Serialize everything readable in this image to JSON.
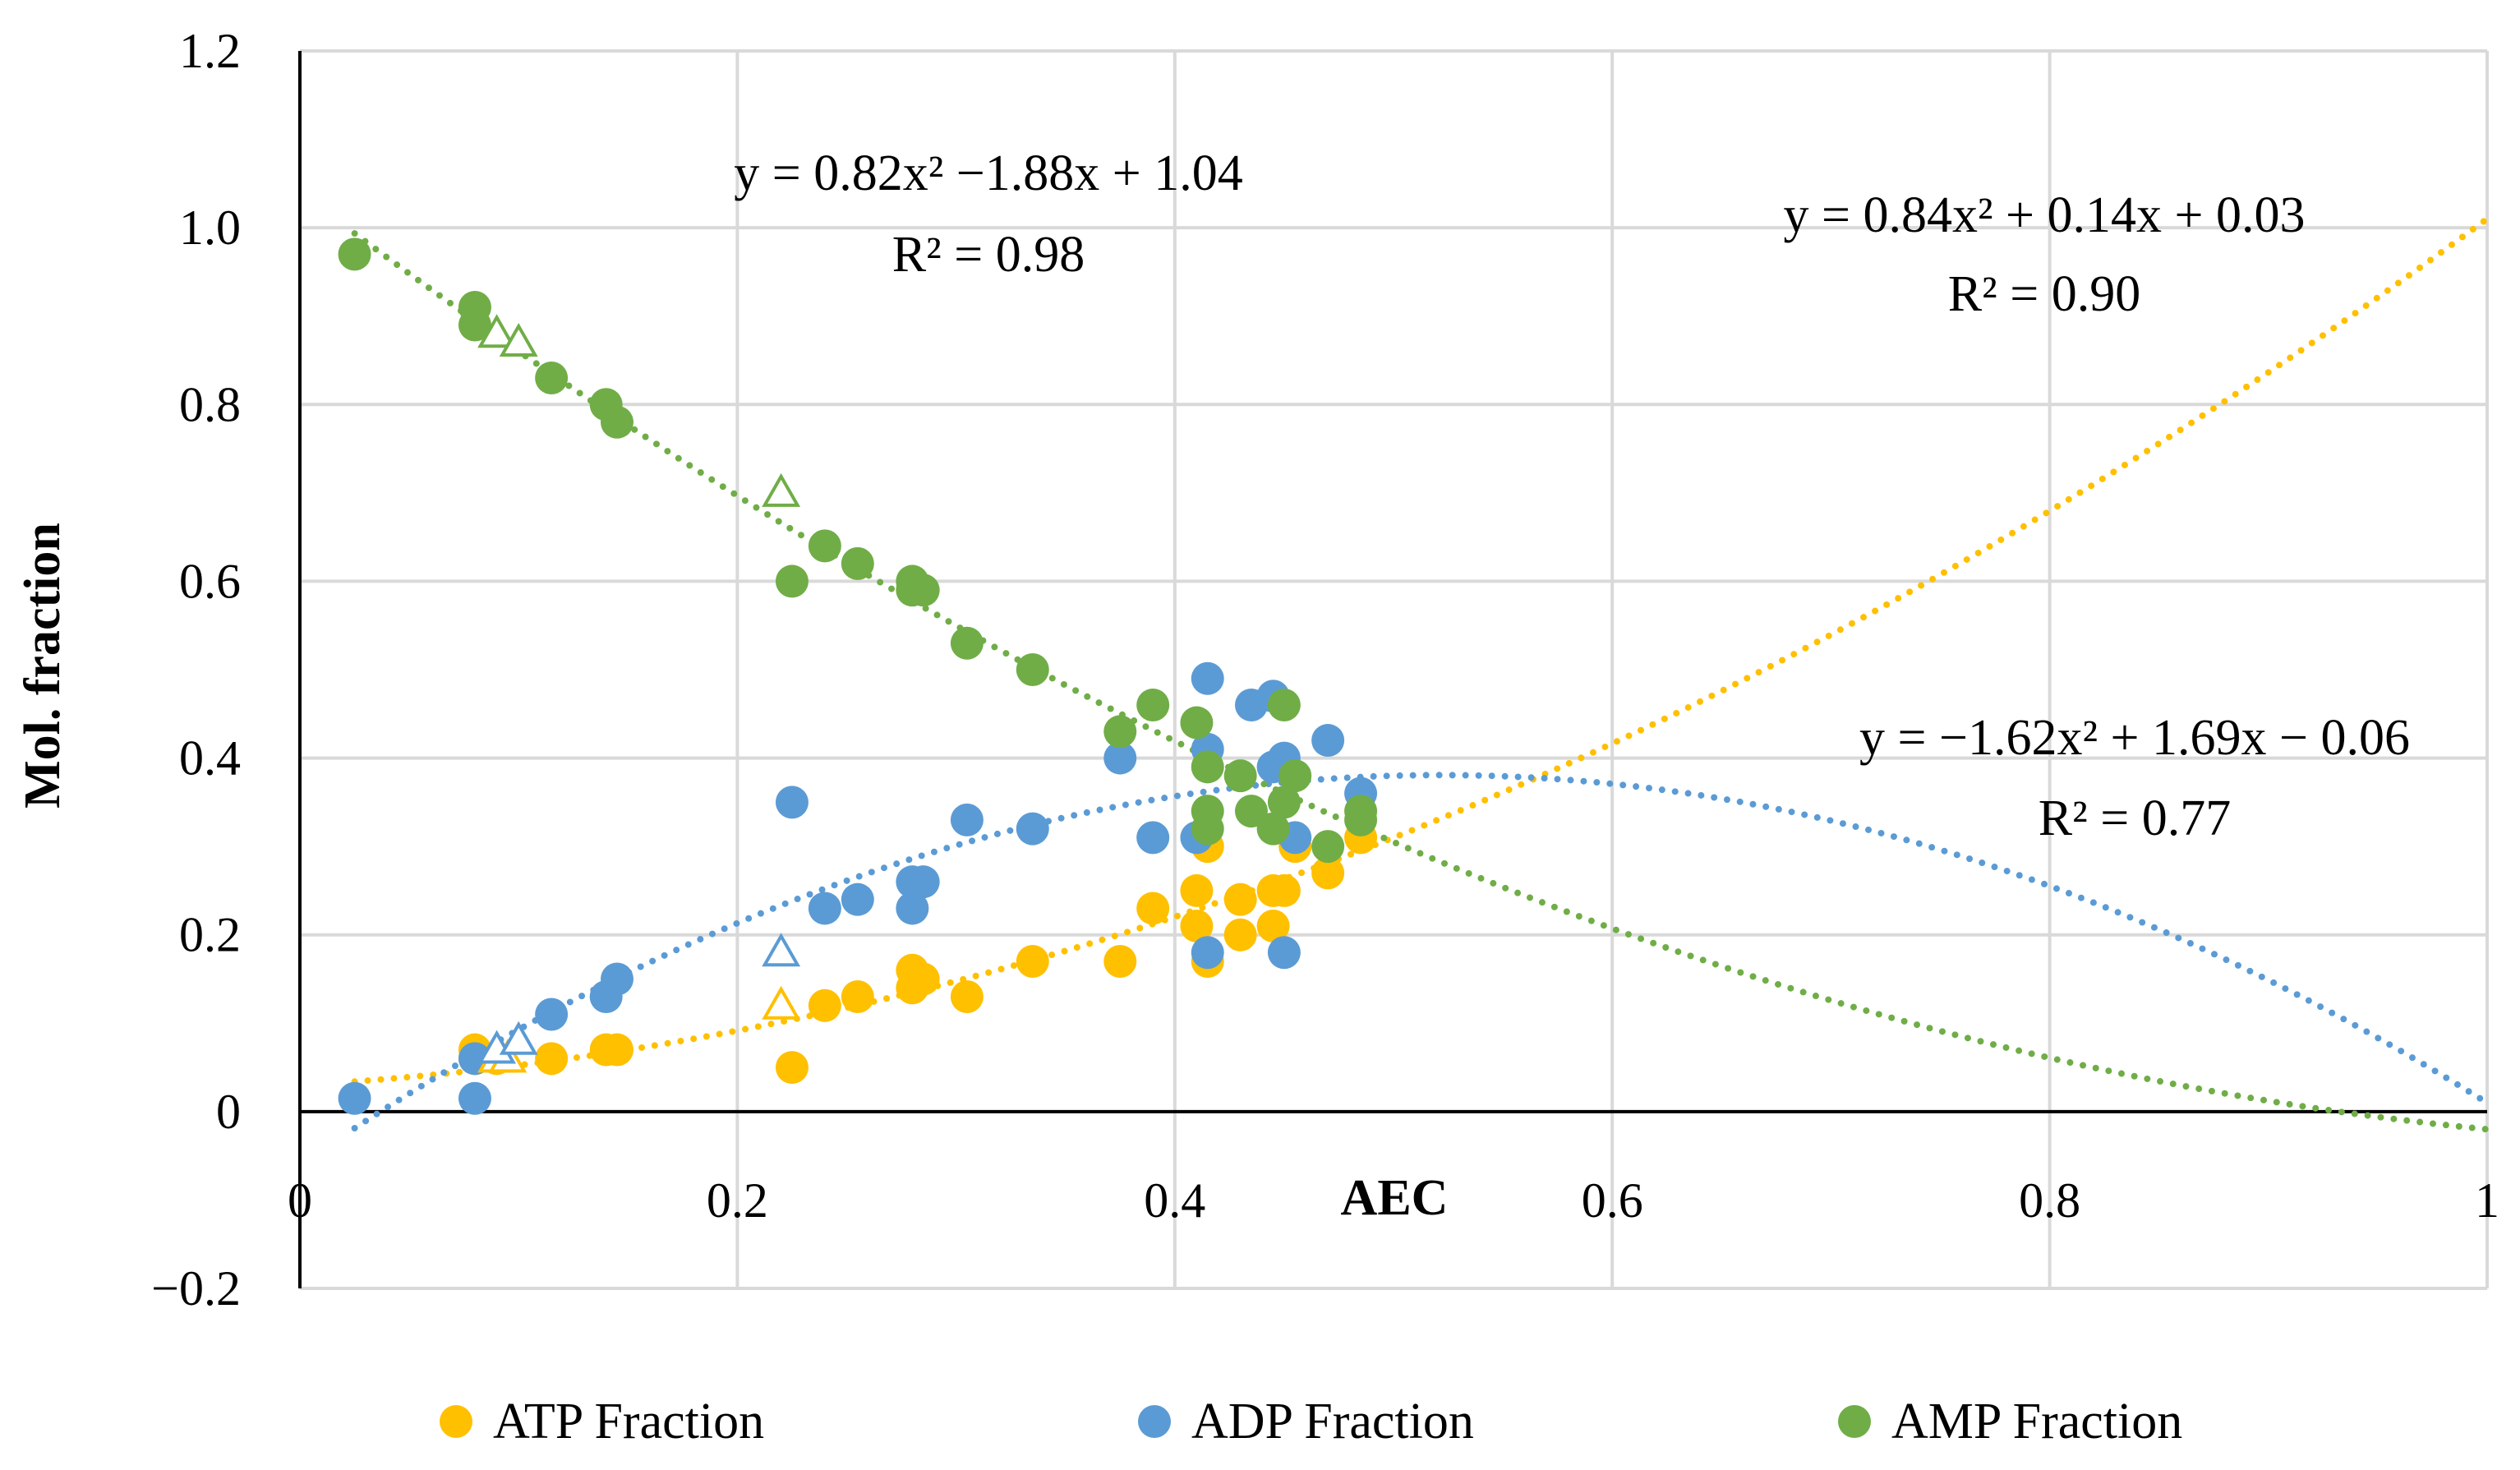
{
  "chart_data": {
    "type": "scatter",
    "title": "",
    "xlabel": "AEC",
    "ylabel": "Mol. fraction",
    "xlim": [
      0,
      1
    ],
    "ylim": [
      -0.2,
      1.2
    ],
    "xticks": [
      0,
      0.2,
      0.4,
      0.6,
      0.8,
      1
    ],
    "xtick_labels": [
      "0",
      "0.2",
      "0.4",
      "0.6",
      "0.8",
      "1"
    ],
    "yticks": [
      -0.2,
      0,
      0.2,
      0.4,
      0.6,
      0.8,
      1.0,
      1.2
    ],
    "ytick_labels": [
      "−0.2",
      "0",
      "0.2",
      "0.4",
      "0.6",
      "0.8",
      "1.0",
      "1.2"
    ],
    "grid": true,
    "legend_position": "bottom",
    "series": [
      {
        "name": "ATP Fraction",
        "color": "#FFC000",
        "points": [
          [
            0.08,
            0.07
          ],
          [
            0.08,
            0.06
          ],
          [
            0.09,
            0.06
          ],
          [
            0.115,
            0.06
          ],
          [
            0.14,
            0.07
          ],
          [
            0.145,
            0.07
          ],
          [
            0.225,
            0.05
          ],
          [
            0.24,
            0.12
          ],
          [
            0.255,
            0.13
          ],
          [
            0.28,
            0.14
          ],
          [
            0.28,
            0.16
          ],
          [
            0.285,
            0.15
          ],
          [
            0.305,
            0.13
          ],
          [
            0.335,
            0.17
          ],
          [
            0.375,
            0.17
          ],
          [
            0.39,
            0.23
          ],
          [
            0.41,
            0.25
          ],
          [
            0.41,
            0.21
          ],
          [
            0.415,
            0.3
          ],
          [
            0.415,
            0.17
          ],
          [
            0.43,
            0.24
          ],
          [
            0.43,
            0.2
          ],
          [
            0.445,
            0.25
          ],
          [
            0.445,
            0.21
          ],
          [
            0.45,
            0.25
          ],
          [
            0.455,
            0.3
          ],
          [
            0.47,
            0.27
          ],
          [
            0.485,
            0.31
          ]
        ],
        "trend_equation": "y = 0.84x² + 0.14x + 0.03",
        "trend_r2": "R² = 0.90"
      },
      {
        "name": "ADP Fraction",
        "color": "#5B9BD5",
        "points": [
          [
            0.025,
            0.015
          ],
          [
            0.08,
            0.06
          ],
          [
            0.08,
            0.015
          ],
          [
            0.115,
            0.11
          ],
          [
            0.14,
            0.13
          ],
          [
            0.145,
            0.15
          ],
          [
            0.225,
            0.35
          ],
          [
            0.24,
            0.23
          ],
          [
            0.255,
            0.24
          ],
          [
            0.28,
            0.26
          ],
          [
            0.28,
            0.23
          ],
          [
            0.285,
            0.26
          ],
          [
            0.305,
            0.33
          ],
          [
            0.335,
            0.32
          ],
          [
            0.375,
            0.4
          ],
          [
            0.39,
            0.31
          ],
          [
            0.41,
            0.31
          ],
          [
            0.415,
            0.41
          ],
          [
            0.415,
            0.49
          ],
          [
            0.415,
            0.18
          ],
          [
            0.435,
            0.46
          ],
          [
            0.445,
            0.47
          ],
          [
            0.445,
            0.39
          ],
          [
            0.45,
            0.4
          ],
          [
            0.45,
            0.18
          ],
          [
            0.455,
            0.31
          ],
          [
            0.47,
            0.42
          ],
          [
            0.485,
            0.36
          ]
        ],
        "trend_equation": "y = −1.62x² + 1.69x − 0.06",
        "trend_r2": "R² = 0.77"
      },
      {
        "name": "AMP Fraction",
        "color": "#70AD47",
        "points": [
          [
            0.025,
            0.97
          ],
          [
            0.08,
            0.91
          ],
          [
            0.08,
            0.89
          ],
          [
            0.115,
            0.83
          ],
          [
            0.14,
            0.8
          ],
          [
            0.145,
            0.78
          ],
          [
            0.225,
            0.6
          ],
          [
            0.24,
            0.64
          ],
          [
            0.255,
            0.62
          ],
          [
            0.28,
            0.6
          ],
          [
            0.28,
            0.59
          ],
          [
            0.285,
            0.59
          ],
          [
            0.305,
            0.53
          ],
          [
            0.335,
            0.5
          ],
          [
            0.375,
            0.43
          ],
          [
            0.39,
            0.46
          ],
          [
            0.41,
            0.44
          ],
          [
            0.415,
            0.39
          ],
          [
            0.415,
            0.34
          ],
          [
            0.415,
            0.32
          ],
          [
            0.43,
            0.38
          ],
          [
            0.435,
            0.34
          ],
          [
            0.445,
            0.32
          ],
          [
            0.45,
            0.46
          ],
          [
            0.45,
            0.35
          ],
          [
            0.455,
            0.38
          ],
          [
            0.47,
            0.3
          ],
          [
            0.485,
            0.33
          ],
          [
            0.485,
            0.34
          ]
        ],
        "trend_equation": "y = 0.82x² −1.88x + 1.04",
        "trend_r2": "R² = 0.98"
      }
    ],
    "open_triangles": [
      {
        "series": "ATP Fraction",
        "points": [
          [
            0.09,
            0.06
          ],
          [
            0.095,
            0.06
          ],
          [
            0.22,
            0.12
          ]
        ]
      },
      {
        "series": "ADP Fraction",
        "points": [
          [
            0.09,
            0.07
          ],
          [
            0.1,
            0.08
          ],
          [
            0.22,
            0.18
          ]
        ]
      },
      {
        "series": "AMP Fraction",
        "points": [
          [
            0.09,
            0.88
          ],
          [
            0.1,
            0.87
          ],
          [
            0.22,
            0.7
          ]
        ]
      }
    ],
    "trendlines": [
      {
        "series": "ATP Fraction",
        "type": "poly2",
        "coef": [
          0.84,
          0.14,
          0.03
        ],
        "x_range": [
          0.025,
          1.0
        ]
      },
      {
        "series": "ADP Fraction",
        "type": "poly2",
        "coef": [
          -1.62,
          1.69,
          -0.06
        ],
        "x_range": [
          0.025,
          1.0
        ]
      },
      {
        "series": "AMP Fraction",
        "type": "poly2",
        "coef": [
          0.82,
          -1.88,
          1.04
        ],
        "x_range": [
          0.025,
          1.0
        ]
      }
    ]
  }
}
